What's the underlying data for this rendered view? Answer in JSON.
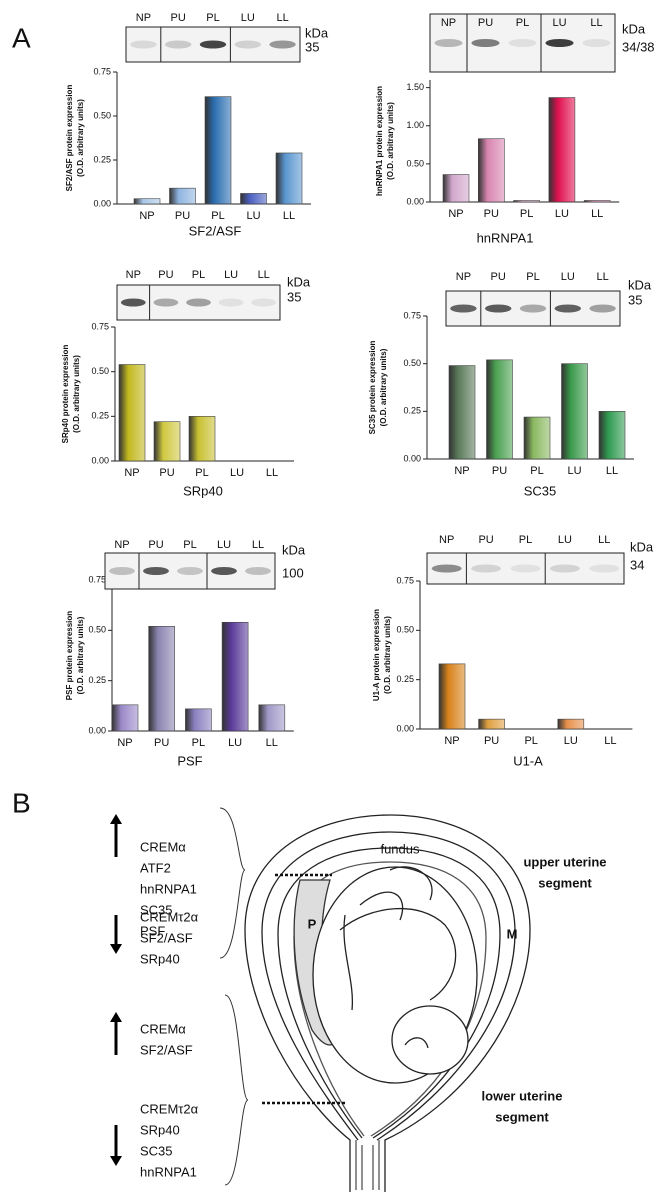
{
  "panel_labels": [
    "A",
    "B"
  ],
  "chart_data": [
    {
      "type": "bar",
      "title": "SF2/ASF",
      "ylabel": [
        "SF2/ASF protein expression",
        "(O.D. arbitrary units)"
      ],
      "categories": [
        "NP",
        "PU",
        "PL",
        "LU",
        "LL"
      ],
      "values": [
        0.03,
        0.09,
        0.61,
        0.06,
        0.29
      ],
      "colors": [
        "#a9c6e8",
        "#8fb4e0",
        "#2a6db0",
        "#4a5fc0",
        "#5a96d0"
      ],
      "ylim": [
        0,
        0.75
      ],
      "yticks": [
        {
          "value": 0,
          "label": "0.00"
        },
        {
          "value": 0.25,
          "label": "0.25"
        },
        {
          "value": 0.5,
          "label": "0.50"
        },
        {
          "value": 0.75,
          "label": "0.75"
        }
      ],
      "blot": {
        "lanes": [
          "NP",
          "PU",
          "PL",
          "LU",
          "LL"
        ],
        "unit": "kDa",
        "size": "35"
      }
    },
    {
      "type": "bar",
      "title": "hnRNPA1",
      "ylabel": [
        "hnRNPA1 protein expression",
        "(O.D. arbitrary units)"
      ],
      "categories": [
        "NP",
        "PU",
        "PL",
        "LU",
        "LL"
      ],
      "values": [
        0.36,
        0.83,
        0.02,
        1.37,
        0.02
      ],
      "colors": [
        "#d2a6cc",
        "#d885b0",
        "#e6b8d4",
        "#e0104f",
        "#e49ac0"
      ],
      "ylim": [
        0,
        1.6
      ],
      "yticks": [
        {
          "value": 0,
          "label": "0.00"
        },
        {
          "value": 0.5,
          "label": "0.50"
        },
        {
          "value": 1,
          "label": "1.00"
        },
        {
          "value": 1.5,
          "label": "1.50"
        }
      ],
      "blot": {
        "lanes": [
          "NP",
          "PU",
          "PL",
          "LU",
          "LL"
        ],
        "unit": "kDa",
        "size": "34/38"
      }
    },
    {
      "type": "bar",
      "title": "SRp40",
      "ylabel": [
        "SRp40 protein expression",
        "(O.D. arbitrary units)"
      ],
      "categories": [
        "NP",
        "PU",
        "PL",
        "LU",
        "LL"
      ],
      "values": [
        0.54,
        0.22,
        0.25,
        0,
        0
      ],
      "colors": [
        "#c2b81e",
        "#cfc840",
        "#c8c030",
        "#c8c030",
        "#c8c030"
      ],
      "ylim": [
        0,
        0.75
      ],
      "yticks": [
        {
          "value": 0,
          "label": "0.00"
        },
        {
          "value": 0.25,
          "label": "0.25"
        },
        {
          "value": 0.5,
          "label": "0.50"
        },
        {
          "value": 0.75,
          "label": "0.75"
        }
      ],
      "blot": {
        "lanes": [
          "NP",
          "PU",
          "PL",
          "LU",
          "LL"
        ],
        "unit": "kDa",
        "size": "35"
      }
    },
    {
      "type": "bar",
      "title": "SC35",
      "ylabel": [
        "SC35 protein expression",
        "(O.D. arbitrary units)"
      ],
      "categories": [
        "NP",
        "PU",
        "PL",
        "LU",
        "LL"
      ],
      "values": [
        0.49,
        0.52,
        0.22,
        0.5,
        0.25
      ],
      "colors": [
        "#5a7a5a",
        "#4aa050",
        "#8ab860",
        "#3a9a4a",
        "#2f9a50"
      ],
      "ylim": [
        0,
        0.75
      ],
      "yticks": [
        {
          "value": 0,
          "label": "0.00"
        },
        {
          "value": 0.25,
          "label": "0.25"
        },
        {
          "value": 0.5,
          "label": "0.50"
        },
        {
          "value": 0.75,
          "label": "0.75"
        }
      ],
      "blot": {
        "lanes": [
          "NP",
          "PU",
          "PL",
          "LU",
          "LL"
        ],
        "unit": "kDa",
        "size": "35"
      }
    },
    {
      "type": "bar",
      "title": "PSF",
      "ylabel": [
        "PSF protein expression",
        "(O.D. arbitrary units)"
      ],
      "categories": [
        "NP",
        "PU",
        "PL",
        "LU",
        "LL"
      ],
      "values": [
        0.13,
        0.52,
        0.11,
        0.54,
        0.13
      ],
      "colors": [
        "#9a88c8",
        "#8a84b0",
        "#8a80c0",
        "#5a3a9a",
        "#a098c8"
      ],
      "ylim": [
        0,
        0.75
      ],
      "yticks": [
        {
          "value": 0,
          "label": "0.00"
        },
        {
          "value": 0.25,
          "label": "0.25"
        },
        {
          "value": 0.5,
          "label": "0.50"
        },
        {
          "value": 0.75,
          "label": "0.75"
        }
      ],
      "blot": {
        "lanes": [
          "NP",
          "PU",
          "PL",
          "LU",
          "LL"
        ],
        "unit": "kDa",
        "size": "100"
      }
    },
    {
      "type": "bar",
      "title": "U1-A",
      "ylabel": [
        "U1-A protein expression",
        "(O.D. arbitrary units)"
      ],
      "categories": [
        "NP",
        "PU",
        "PL",
        "LU",
        "LL"
      ],
      "values": [
        0.33,
        0.05,
        0,
        0.05,
        0
      ],
      "colors": [
        "#d8821a",
        "#e0a040",
        "#e0a040",
        "#e8904a",
        "#e0a040"
      ],
      "ylim": [
        0,
        0.75
      ],
      "yticks": [
        {
          "value": 0,
          "label": "0.00"
        },
        {
          "value": 0.25,
          "label": "0.25"
        },
        {
          "value": 0.5,
          "label": "0.50"
        },
        {
          "value": 0.75,
          "label": "0.75"
        }
      ],
      "blot": {
        "lanes": [
          "NP",
          "PU",
          "PL",
          "LU",
          "LL"
        ],
        "unit": "kDa",
        "size": "34"
      }
    }
  ],
  "diagram": {
    "upper": {
      "increased": [
        {
          "text": "CREMα",
          "color": "#000000"
        },
        {
          "text": "ATF2",
          "color": "#000000"
        },
        {
          "text": "hnRNPA1",
          "color": "#e0201a"
        },
        {
          "text": "SC35",
          "color": "#e0201a"
        },
        {
          "text": "PSF",
          "color": "#e0201a"
        }
      ],
      "decreased": [
        {
          "text": "CREMτ2α",
          "color": "#000000"
        },
        {
          "text": "SF2/ASF",
          "color": "#e0201a"
        },
        {
          "text": "SRp40",
          "color": "#e0201a"
        }
      ]
    },
    "lower": {
      "increased": [
        {
          "text": "CREMα",
          "color": "#000000"
        },
        {
          "text": "SF2/ASF",
          "color": "#e0201a"
        }
      ],
      "decreased": [
        {
          "text": "CREMτ2α",
          "color": "#000000"
        },
        {
          "text": "SRp40",
          "color": "#e0201a"
        },
        {
          "text": "SC35",
          "color": "#e0201a"
        },
        {
          "text": "hnRNPA1",
          "color": "#e0201a"
        }
      ]
    },
    "fundus": "fundus",
    "upper_segment": [
      "upper uterine",
      "segment"
    ],
    "lower_segment": [
      "lower uterine",
      "segment"
    ],
    "placenta": "P",
    "myometrium": "M"
  }
}
